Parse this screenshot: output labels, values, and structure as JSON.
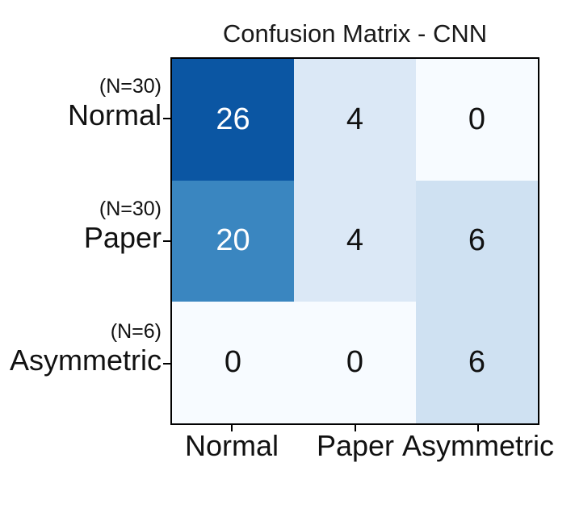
{
  "title": "Confusion Matrix - CNN",
  "chart_data": {
    "type": "heatmap",
    "title": "Confusion Matrix - CNN",
    "colormap": "Blues",
    "x_categories": [
      "Normal",
      "Paper",
      "Asymmetric"
    ],
    "y_categories": [
      "Normal",
      "Paper",
      "Asymmetric"
    ],
    "y_row_counts": [
      "(N=30)",
      "(N=30)",
      "(N=6)"
    ],
    "matrix": [
      [
        26,
        4,
        0
      ],
      [
        20,
        4,
        6
      ],
      [
        0,
        0,
        6
      ]
    ],
    "value_range": [
      0,
      30
    ],
    "grid": false,
    "legend_position": "none",
    "axes_frame_color": "#000000",
    "background": "#ffffff"
  },
  "y_axis": {
    "items": [
      {
        "count": "(N=30)",
        "label": "Normal"
      },
      {
        "count": "(N=30)",
        "label": "Paper"
      },
      {
        "count": "(N=6)",
        "label": "Asymmetric"
      }
    ]
  },
  "x_axis": {
    "labels": [
      "Normal",
      "Paper",
      "Asymmetric"
    ]
  },
  "cells": [
    {
      "value": "26",
      "bg": "#0b56a3",
      "fg": "#ffffff"
    },
    {
      "value": "4",
      "bg": "#dbe8f6",
      "fg": "#111111"
    },
    {
      "value": "0",
      "bg": "#f7fbff",
      "fg": "#111111"
    },
    {
      "value": "20",
      "bg": "#3a86c0",
      "fg": "#ffffff"
    },
    {
      "value": "4",
      "bg": "#dbe8f6",
      "fg": "#111111"
    },
    {
      "value": "6",
      "bg": "#cfe1f2",
      "fg": "#111111"
    },
    {
      "value": "0",
      "bg": "#f7fbff",
      "fg": "#111111"
    },
    {
      "value": "0",
      "bg": "#f7fbff",
      "fg": "#111111"
    },
    {
      "value": "6",
      "bg": "#cfe1f2",
      "fg": "#111111"
    }
  ],
  "colors": {
    "max_cell": "#0b56a3",
    "mid_cell": "#3a86c0",
    "low_cell": "#dbe8f6",
    "low6_cell": "#cfe1f2",
    "zero_cell": "#f7fbff",
    "frame": "#000000",
    "text": "#111111"
  }
}
